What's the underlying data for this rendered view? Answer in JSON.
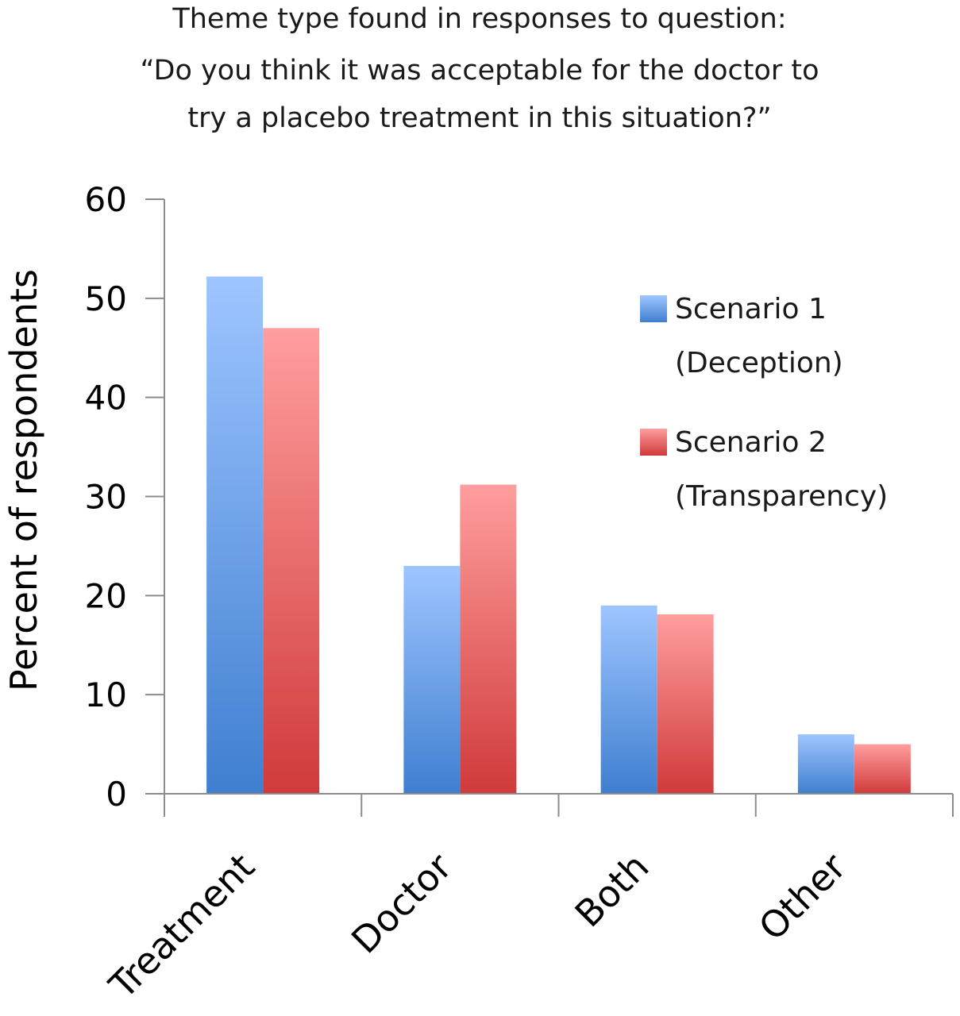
{
  "chart_data": {
    "type": "bar",
    "title_lines": [
      "Theme type found in responses to question:",
      "“Do you think it was acceptable for the doctor to",
      "try a placebo treatment in this situation?”"
    ],
    "xlabel": "",
    "ylabel": "Percent of respondents",
    "ylim": [
      0,
      60
    ],
    "yticks": [
      "0",
      "10",
      "20",
      "30",
      "40",
      "50",
      "60"
    ],
    "categories": [
      "Treatment",
      "Doctor",
      "Both",
      "Other"
    ],
    "series": [
      {
        "name_lines": [
          "Scenario 1",
          "(Deception)"
        ],
        "values": [
          52.2,
          23.0,
          19.0,
          6.0
        ],
        "color_top": "#9ec5ff",
        "color_bottom": "#3f7fd0"
      },
      {
        "name_lines": [
          "Scenario 2",
          "(Transparency)"
        ],
        "values": [
          47.0,
          31.2,
          18.1,
          5.0
        ],
        "color_top": "#ff9e9e",
        "color_bottom": "#d03a3a"
      }
    ],
    "grid": false,
    "legend_position": "right"
  }
}
